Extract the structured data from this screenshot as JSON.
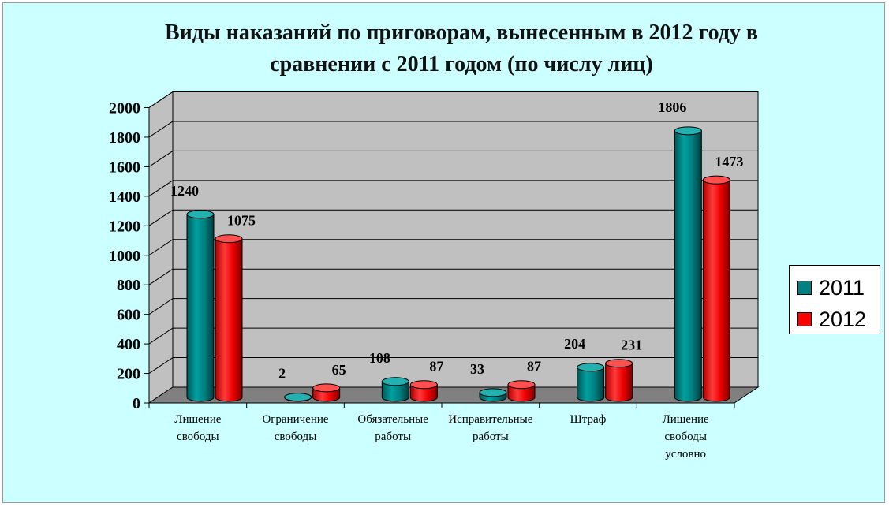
{
  "chart_data": {
    "type": "bar",
    "title": "Виды наказаний по приговорам, вынесенным в 2012 году в сравнении с 2011 годом (по числу лиц)",
    "categories": [
      [
        "Лишение",
        "свободы"
      ],
      [
        "Ограничение",
        "свободы"
      ],
      [
        "Обязательные",
        "работы"
      ],
      [
        "Исправительные",
        "работы"
      ],
      [
        "Штраф"
      ],
      [
        "Лишение",
        "свободы",
        "условно"
      ]
    ],
    "series": [
      {
        "name": "2011",
        "values": [
          1240,
          2,
          108,
          33,
          204,
          1806
        ],
        "color": "#008080"
      },
      {
        "name": "2012",
        "values": [
          1075,
          65,
          87,
          87,
          231,
          1473
        ],
        "color": "#ff0000"
      }
    ],
    "ylim": [
      0,
      2000
    ],
    "yticks": [
      0,
      200,
      400,
      600,
      800,
      1000,
      1200,
      1400,
      1600,
      1800,
      2000
    ],
    "grid": true,
    "legend_position": "right",
    "style": "3d-cylinder"
  }
}
